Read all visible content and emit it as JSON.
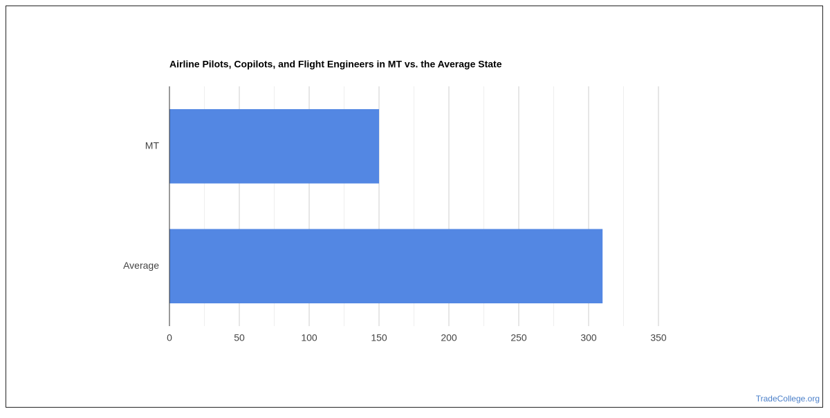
{
  "chart_data": {
    "type": "bar",
    "orientation": "horizontal",
    "title": "Airline Pilots, Copilots, and Flight Engineers in MT vs. the Average State",
    "categories": [
      "MT",
      "Average"
    ],
    "values": [
      150,
      310
    ],
    "color": "#5387e3",
    "xlim": [
      0,
      350
    ],
    "xticks": [
      0,
      50,
      100,
      150,
      200,
      250,
      300,
      350
    ],
    "grid": true,
    "source": "TradeCollege.org"
  }
}
